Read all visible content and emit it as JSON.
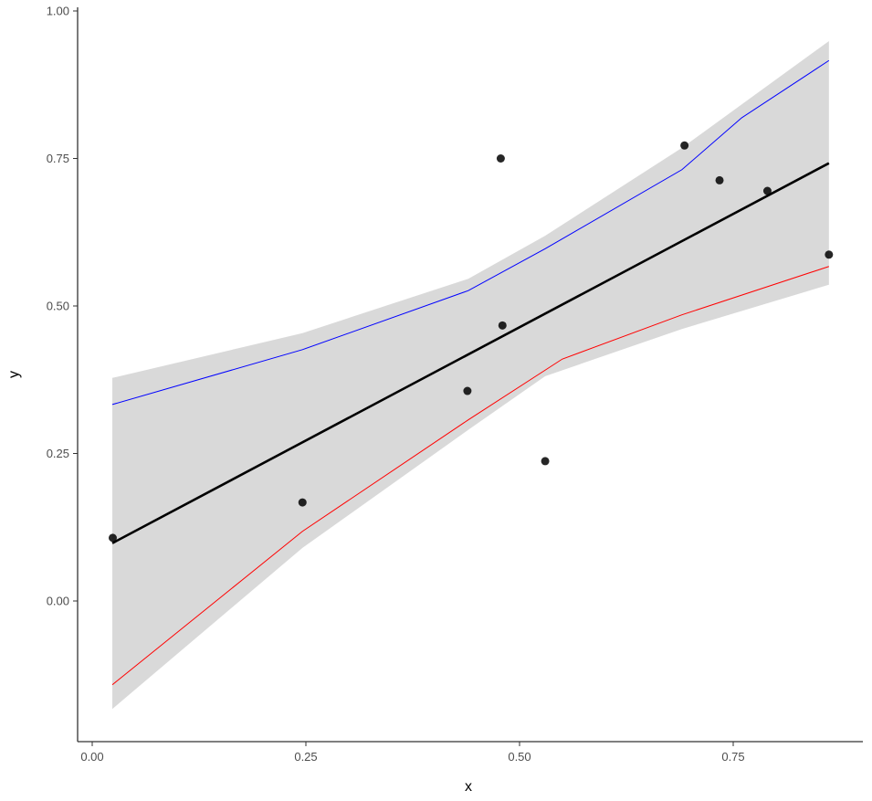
{
  "chart_data": {
    "type": "scatter",
    "title": "",
    "xlabel": "x",
    "ylabel": "y",
    "xlim": [
      -0.017,
      0.902
    ],
    "ylim": [
      -0.238,
      1.006
    ],
    "x_ticks": [
      "0.00",
      "0.25",
      "0.50",
      "0.75"
    ],
    "y_ticks": [
      "0.00",
      "0.25",
      "0.50",
      "0.75",
      "1.00"
    ],
    "grid": false,
    "points": {
      "x": [
        0.024,
        0.246,
        0.478,
        0.48,
        0.439,
        0.53,
        0.693,
        0.734,
        0.79,
        0.862
      ],
      "y": [
        0.107,
        0.167,
        0.75,
        0.467,
        0.356,
        0.237,
        0.772,
        0.713,
        0.695,
        0.587
      ]
    },
    "series": [
      {
        "name": "fit",
        "color": "#000000",
        "x": [
          0.0235,
          0.862
        ],
        "y": [
          0.098,
          0.742
        ]
      },
      {
        "name": "upper",
        "color": "#0000ff",
        "x": [
          0.0235,
          0.246,
          0.44,
          0.53,
          0.69,
          0.76,
          0.862
        ],
        "y": [
          0.333,
          0.426,
          0.526,
          0.597,
          0.731,
          0.819,
          0.916
        ]
      },
      {
        "name": "lower",
        "color": "#ff0000",
        "x": [
          0.0235,
          0.246,
          0.44,
          0.55,
          0.69,
          0.862
        ],
        "y": [
          -0.142,
          0.118,
          0.307,
          0.41,
          0.485,
          0.567
        ]
      }
    ],
    "band": {
      "color": "#d9d9d9",
      "x": [
        0.0235,
        0.246,
        0.44,
        0.53,
        0.69,
        0.862
      ],
      "upper": [
        0.378,
        0.454,
        0.546,
        0.619,
        0.768,
        0.949
      ],
      "lower": [
        -0.183,
        0.09,
        0.29,
        0.381,
        0.461,
        0.536
      ]
    }
  }
}
